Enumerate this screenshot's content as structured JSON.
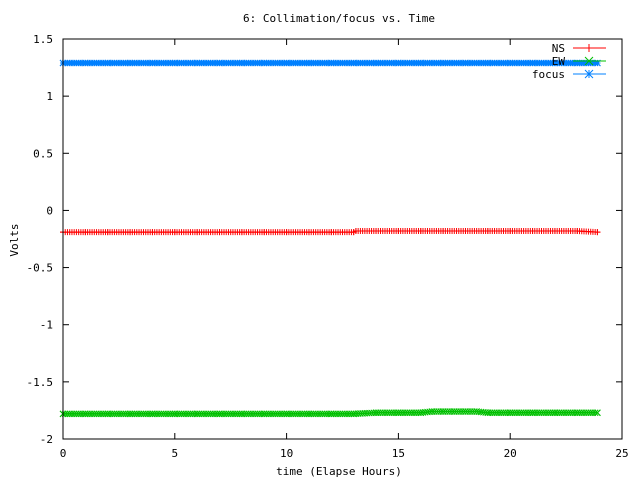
{
  "chart_data": {
    "type": "line",
    "title": "6: Collimation/focus vs. Time",
    "xlabel": "time (Elapse Hours)",
    "ylabel": "Volts",
    "xlim": [
      0,
      25
    ],
    "ylim": [
      -2,
      1.5
    ],
    "xticks": [
      0,
      5,
      10,
      15,
      20,
      25
    ],
    "xtick_labels": [
      "0",
      "5",
      "10",
      "15",
      "20",
      "25"
    ],
    "yticks": [
      -2,
      -1.5,
      -1,
      -0.5,
      0,
      0.5,
      1,
      1.5
    ],
    "ytick_labels": [
      "-2",
      "-1.5",
      "-1",
      "-0.5",
      "0",
      "0.5",
      "1",
      "1.5"
    ],
    "grid": false,
    "legend_position": "top-right",
    "series": [
      {
        "name": "NS",
        "color": "#ff0000",
        "marker": "plus",
        "x": [
          0,
          1,
          2,
          3,
          4,
          5,
          6,
          7,
          8,
          9,
          10,
          11,
          12,
          13,
          13.1,
          14,
          15,
          16,
          17,
          18,
          19,
          20,
          21,
          22,
          23,
          23.9
        ],
        "values": [
          -0.19,
          -0.19,
          -0.19,
          -0.19,
          -0.19,
          -0.19,
          -0.19,
          -0.19,
          -0.19,
          -0.19,
          -0.19,
          -0.19,
          -0.19,
          -0.19,
          -0.18,
          -0.18,
          -0.18,
          -0.18,
          -0.18,
          -0.18,
          -0.18,
          -0.18,
          -0.18,
          -0.18,
          -0.18,
          -0.19
        ]
      },
      {
        "name": "EW",
        "color": "#00c000",
        "marker": "cross",
        "x": [
          0,
          1,
          2,
          3,
          4,
          5,
          6,
          7,
          8,
          9,
          10,
          11,
          12,
          13,
          14,
          15,
          16,
          16.5,
          17,
          17.5,
          18,
          18.5,
          19,
          20,
          21,
          22,
          23,
          23.9
        ],
        "values": [
          -1.78,
          -1.78,
          -1.78,
          -1.78,
          -1.78,
          -1.78,
          -1.78,
          -1.78,
          -1.78,
          -1.78,
          -1.78,
          -1.78,
          -1.78,
          -1.78,
          -1.77,
          -1.77,
          -1.77,
          -1.76,
          -1.76,
          -1.76,
          -1.76,
          -1.76,
          -1.77,
          -1.77,
          -1.77,
          -1.77,
          -1.77,
          -1.77
        ]
      },
      {
        "name": "focus",
        "color": "#0080ff",
        "marker": "star",
        "x": [
          0,
          1,
          2,
          3,
          4,
          5,
          6,
          7,
          8,
          9,
          10,
          11,
          12,
          13,
          14,
          15,
          16,
          17,
          18,
          19,
          20,
          21,
          22,
          23,
          23.9
        ],
        "values": [
          1.29,
          1.29,
          1.29,
          1.29,
          1.29,
          1.29,
          1.29,
          1.29,
          1.29,
          1.29,
          1.29,
          1.29,
          1.29,
          1.29,
          1.29,
          1.29,
          1.29,
          1.29,
          1.29,
          1.29,
          1.29,
          1.29,
          1.29,
          1.29,
          1.29
        ]
      }
    ]
  }
}
